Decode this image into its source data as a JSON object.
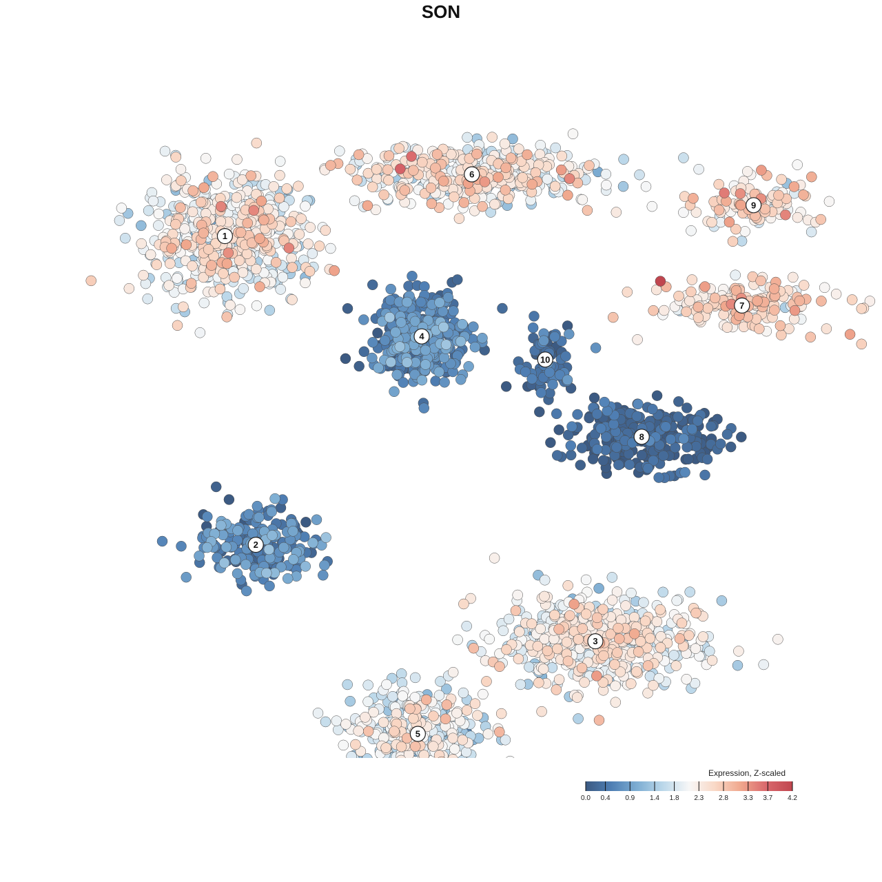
{
  "title": "SON",
  "chart_data": {
    "type": "scatter",
    "title": "SON",
    "xlabel": "",
    "ylabel": "",
    "grid": false,
    "axes": false,
    "color_scale": {
      "title": "Expression, Z-scaled",
      "min": 0.0,
      "max": 4.2,
      "ticks": [
        "0.0",
        "0.4",
        "0.9",
        "1.4",
        "1.8",
        "2.3",
        "2.8",
        "3.3",
        "3.7",
        "4.2"
      ],
      "colors": [
        "#3c5a82",
        "#4f7fb4",
        "#7eaed3",
        "#bcd8ea",
        "#f7f7f7",
        "#f9d8c6",
        "#f0a78d",
        "#d9676c",
        "#c0464f"
      ]
    },
    "clusters": [
      {
        "label": "1",
        "x": -5.6,
        "y": 5.4,
        "sx": 1.9,
        "sy": 1.4,
        "mean": 2.1,
        "spread": 0.45,
        "n": 560
      },
      {
        "label": "6",
        "x": 0.8,
        "y": 7.0,
        "sx": 3.0,
        "sy": 0.7,
        "mean": 2.15,
        "spread": 0.45,
        "n": 430
      },
      {
        "label": "4",
        "x": -0.5,
        "y": 2.8,
        "sx": 1.15,
        "sy": 1.1,
        "mean": 0.55,
        "spread": 0.3,
        "n": 360
      },
      {
        "label": "10",
        "x": 2.7,
        "y": 2.2,
        "sx": 0.8,
        "sy": 0.9,
        "mean": 0.3,
        "spread": 0.25,
        "n": 80
      },
      {
        "label": "9",
        "x": 8.1,
        "y": 6.2,
        "sx": 1.4,
        "sy": 0.7,
        "mean": 2.4,
        "spread": 0.4,
        "n": 110
      },
      {
        "label": "7",
        "x": 7.8,
        "y": 3.6,
        "sx": 2.2,
        "sy": 0.6,
        "mean": 2.55,
        "spread": 0.4,
        "n": 160
      },
      {
        "label": "8",
        "x": 5.2,
        "y": 0.2,
        "sx": 1.9,
        "sy": 0.8,
        "mean": 0.15,
        "spread": 0.2,
        "n": 250
      },
      {
        "label": "2",
        "x": -4.8,
        "y": -2.6,
        "sx": 1.5,
        "sy": 0.9,
        "mean": 0.6,
        "spread": 0.35,
        "n": 200
      },
      {
        "label": "3",
        "x": 4.0,
        "y": -5.1,
        "sx": 2.4,
        "sy": 1.1,
        "mean": 2.1,
        "spread": 0.4,
        "n": 540
      },
      {
        "label": "5",
        "x": -0.6,
        "y": -7.5,
        "sx": 1.6,
        "sy": 1.1,
        "mean": 1.9,
        "spread": 0.45,
        "n": 340
      }
    ]
  },
  "legend": {
    "title": "Expression, Z-scaled"
  }
}
